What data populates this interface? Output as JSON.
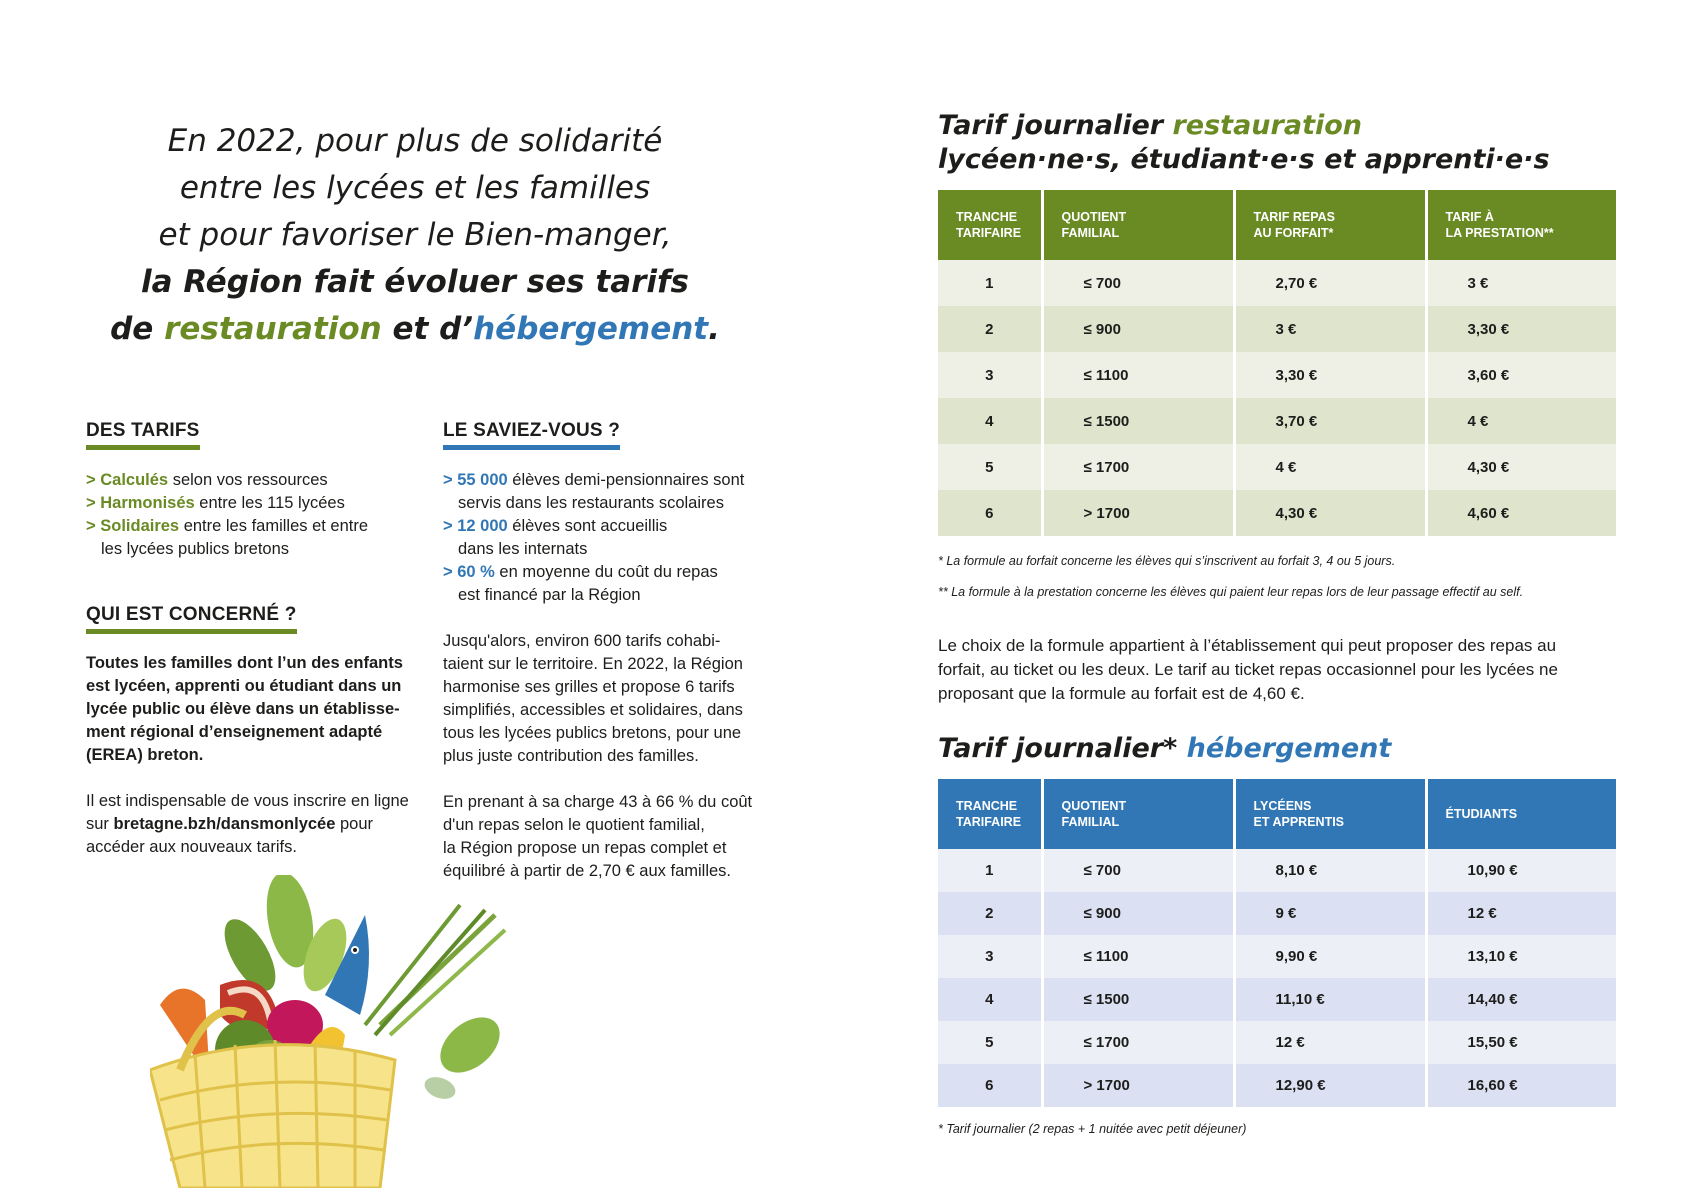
{
  "intro": {
    "l1": "En 2022, pour plus de solidarité",
    "l2": "entre les lycées et les familles",
    "l3": "et pour favoriser le Bien-manger,",
    "l4": "la Région fait évoluer ses tarifs",
    "l5a": "de ",
    "l5b": "restauration",
    "l5c": " et d’",
    "l5d": "hébergement",
    "l5e": "."
  },
  "des_tarifs": {
    "title": "DES TARIFS",
    "items": [
      {
        "chev": "> ",
        "key": "Calculés",
        "rest": " selon vos ressources"
      },
      {
        "chev": "> ",
        "key": "Harmonisés",
        "rest": " entre les 115 lycées"
      },
      {
        "chev": "> ",
        "key": "Solidaires",
        "rest": " entre les familles et entre",
        "rest2": "les lycées publics bretons"
      }
    ]
  },
  "qui": {
    "title": "QUI EST CONCERNÉ ?",
    "bold_lines": [
      "Toutes les familles dont l’un des enfants",
      "est lycéen, apprenti ou étudiant dans un",
      "lycée public ou élève dans un établisse-",
      "ment régional d’enseignement adapté",
      "(EREA) breton."
    ],
    "p2_l1": "Il est indispensable de vous inscrire en ligne",
    "p2_l2a": "sur ",
    "p2_l2b": "bretagne.bzh/dansmonlycée",
    "p2_l2c": " pour",
    "p2_l3": "accéder aux nouveaux tarifs."
  },
  "saviez": {
    "title": "LE SAVIEZ-VOUS ?",
    "items": [
      {
        "chev": "> ",
        "key": "55 000",
        "l1": " élèves demi-pensionnaires sont",
        "l2": "servis dans les restaurants scolaires"
      },
      {
        "chev": "> ",
        "key": "12 000",
        "l1": " élèves sont accueillis",
        "l2": "dans les internats"
      },
      {
        "chev": "> ",
        "key": "60 %",
        "l1": " en moyenne du coût du repas",
        "l2": "est financé par la Région"
      }
    ],
    "p1": [
      "Jusqu'alors, environ 600 tarifs cohabi-",
      "taient sur le territoire. En 2022, la Région",
      "harmonise ses grilles et propose 6 tarifs",
      "simplifiés, accessibles et solidaires, dans",
      "tous les lycées publics bretons, pour une",
      "plus juste contribution des familles."
    ],
    "p2": [
      "En prenant à sa charge 43 à 66 % du coût",
      "d'un repas selon le quotient familial,",
      "la Région propose un repas complet et",
      "équilibré à partir de 2,70 € aux familles."
    ]
  },
  "restauration": {
    "title_a": "Tarif journalier ",
    "title_b": "restauration",
    "title_l2": "lycéen·ne·s, étudiant·e·s et apprenti·e·s",
    "headers": [
      [
        "TRANCHE",
        "TARIFAIRE"
      ],
      [
        "QUOTIENT",
        "FAMILIAL"
      ],
      [
        "TARIF REPAS",
        "AU FORFAIT*"
      ],
      [
        "TARIF À",
        "LA PRESTATION**"
      ]
    ],
    "rows": [
      [
        "1",
        "≤ 700",
        "2,70 €",
        "3 €"
      ],
      [
        "2",
        "≤ 900",
        "3 €",
        "3,30 €"
      ],
      [
        "3",
        "≤ 1100",
        "3,30 €",
        "3,60 €"
      ],
      [
        "4",
        "≤ 1500",
        "3,70 €",
        "4 €"
      ],
      [
        "5",
        "≤ 1700",
        "4 €",
        "4,30 €"
      ],
      [
        "6",
        "> 1700",
        "4,30 €",
        "4,60 €"
      ]
    ],
    "note1": "*  La formule au forfait concerne les élèves qui s’inscrivent au forfait 3, 4 ou 5 jours.",
    "note2": "**  La formule à la prestation concerne les élèves qui paient leur repas lors de leur passage effectif au self.",
    "para": [
      "Le choix de la formule appartient à l’établissement qui peut proposer des repas au",
      "forfait, au ticket ou les deux. Le tarif au ticket repas occasionnel pour les lycées ne",
      "proposant que la formule au forfait est de 4,60 €."
    ]
  },
  "hebergement": {
    "title_a": "Tarif journalier* ",
    "title_b": "hébergement",
    "headers": [
      [
        "TRANCHE",
        "TARIFAIRE"
      ],
      [
        "QUOTIENT",
        "FAMILIAL"
      ],
      [
        "LYCÉENS",
        "ET APPRENTIS"
      ],
      [
        "ÉTUDIANTS",
        ""
      ]
    ],
    "rows": [
      [
        "1",
        "≤ 700",
        "8,10 €",
        "10,90 €"
      ],
      [
        "2",
        "≤ 900",
        "9 €",
        "12 €"
      ],
      [
        "3",
        "≤ 1100",
        "9,90 €",
        "13,10 €"
      ],
      [
        "4",
        "≤ 1500",
        "11,10 €",
        "14,40 €"
      ],
      [
        "5",
        "≤ 1700",
        "12 €",
        "15,50 €"
      ],
      [
        "6",
        "> 1700",
        "12,90 €",
        "16,60 €"
      ]
    ],
    "note": "*  Tarif journalier (2 repas + 1 nuitée avec petit déjeuner)"
  },
  "colors": {
    "green": "#6a8a24",
    "blue": "#3277b5"
  }
}
